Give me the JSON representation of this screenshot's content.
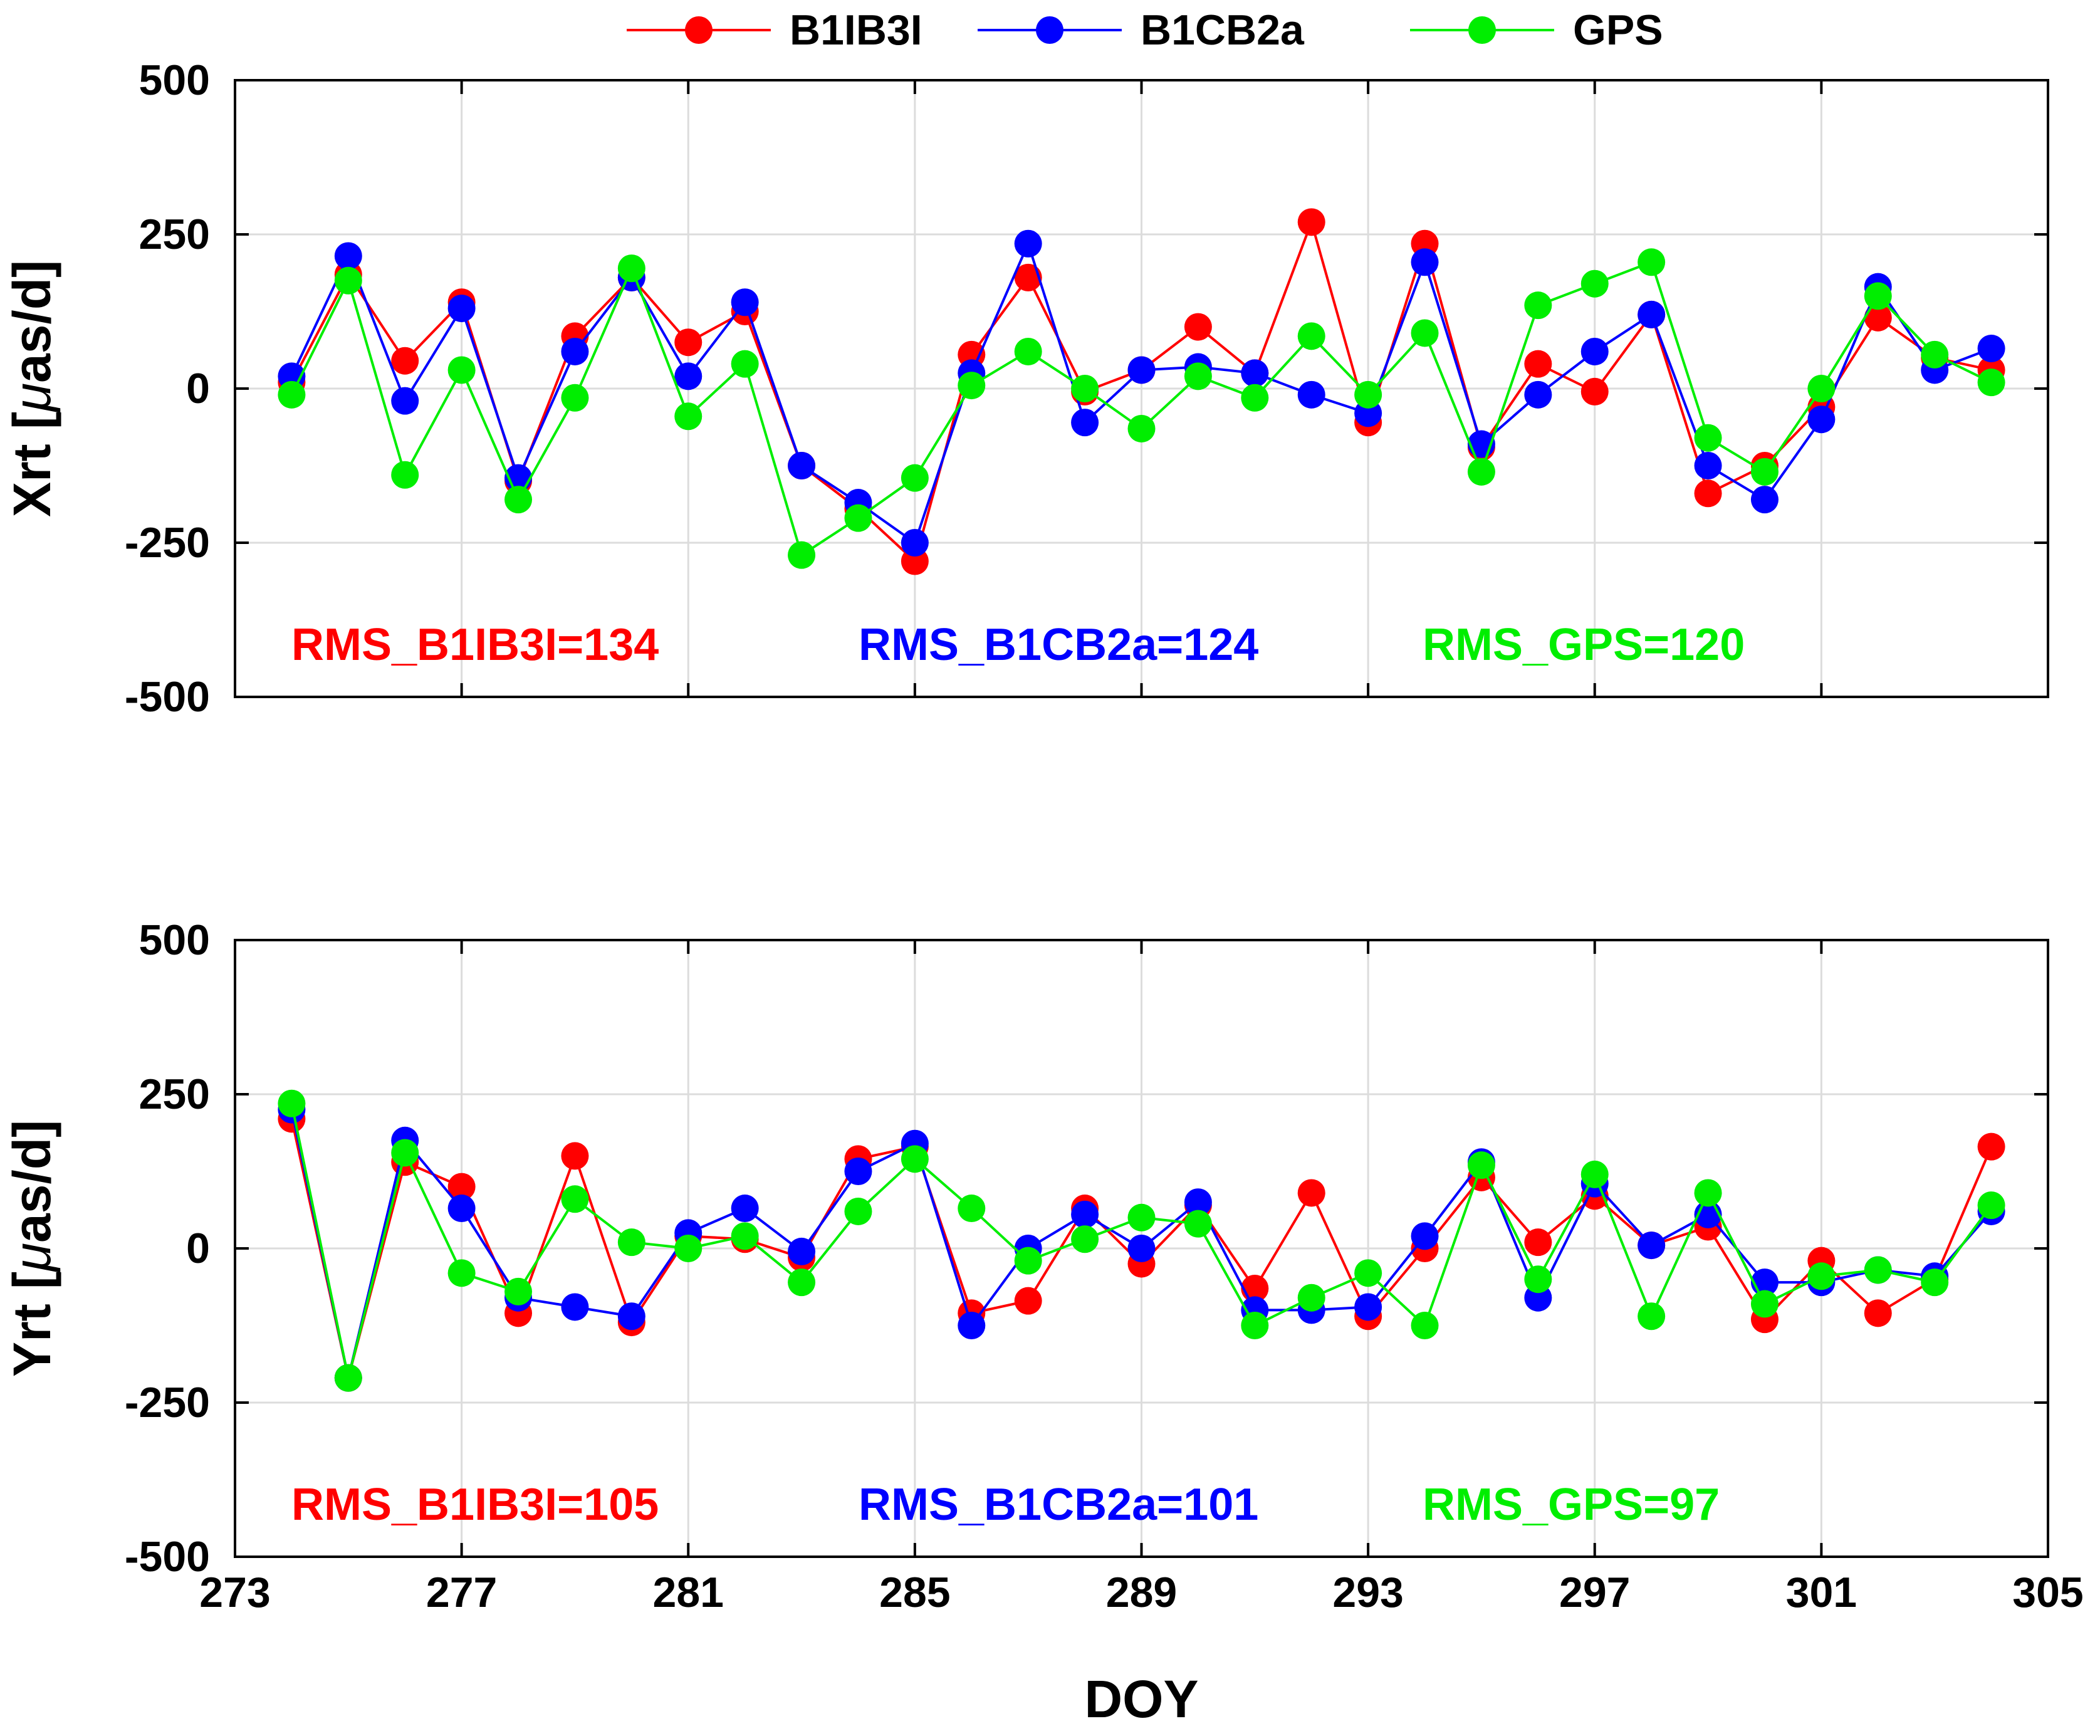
{
  "legend": {
    "entries": [
      {
        "label": "B1IB3I",
        "color": "#ff0000"
      },
      {
        "label": "B1CB2a",
        "color": "#0000ff"
      },
      {
        "label": "GPS",
        "color": "#00ee00"
      }
    ]
  },
  "chart_data": [
    {
      "type": "line",
      "title": "",
      "xlabel": "",
      "ylabel": "Xrt [μas/d]",
      "ylabel_prefix": "Xrt [",
      "ylabel_greek": "μ",
      "ylabel_suffix": "as/d]",
      "xlim": [
        273,
        305
      ],
      "ylim": [
        -500,
        500
      ],
      "xticks": [
        273,
        277,
        281,
        285,
        289,
        293,
        297,
        301,
        305
      ],
      "yticks": [
        -500,
        -250,
        0,
        250,
        500
      ],
      "grid": true,
      "x": [
        274,
        275,
        276,
        277,
        278,
        279,
        280,
        281,
        282,
        283,
        284,
        285,
        286,
        287,
        288,
        289,
        290,
        291,
        292,
        293,
        294,
        295,
        296,
        297,
        298,
        299,
        300,
        301,
        302,
        303,
        304
      ],
      "series": [
        {
          "name": "B1IB3I",
          "color": "#ff0000",
          "values": [
            10,
            185,
            45,
            140,
            -150,
            85,
            180,
            75,
            125,
            -125,
            -195,
            -280,
            55,
            180,
            -5,
            30,
            100,
            25,
            270,
            -55,
            235,
            -95,
            40,
            -5,
            120,
            -170,
            -125,
            -30,
            115,
            50,
            30
          ]
        },
        {
          "name": "B1CB2a",
          "color": "#0000ff",
          "values": [
            20,
            215,
            -20,
            130,
            -145,
            60,
            180,
            20,
            140,
            -125,
            -185,
            -250,
            25,
            235,
            -55,
            30,
            35,
            25,
            -10,
            -40,
            205,
            -90,
            -10,
            60,
            120,
            -125,
            -180,
            -50,
            165,
            30,
            65
          ]
        },
        {
          "name": "GPS",
          "color": "#00ee00",
          "values": [
            -10,
            175,
            -140,
            30,
            -180,
            -15,
            195,
            -45,
            40,
            -270,
            -210,
            -145,
            5,
            60,
            0,
            -65,
            20,
            -15,
            85,
            -10,
            90,
            -135,
            135,
            170,
            205,
            -80,
            -135,
            0,
            150,
            55,
            10
          ]
        }
      ],
      "annotations": [
        {
          "text": "RMS_B1IB3I=134",
          "color": "#ff0000"
        },
        {
          "text": "RMS_B1CB2a=124",
          "color": "#0000ff"
        },
        {
          "text": "RMS_GPS=120",
          "color": "#00ee00"
        }
      ]
    },
    {
      "type": "line",
      "title": "",
      "xlabel": "DOY",
      "ylabel": "Yrt [μas/d]",
      "ylabel_prefix": "Yrt [",
      "ylabel_greek": "μ",
      "ylabel_suffix": "as/d]",
      "xlim": [
        273,
        305
      ],
      "ylim": [
        -500,
        500
      ],
      "xticks": [
        273,
        277,
        281,
        285,
        289,
        293,
        297,
        301,
        305
      ],
      "yticks": [
        -500,
        -250,
        0,
        250,
        500
      ],
      "grid": true,
      "x": [
        274,
        275,
        276,
        277,
        278,
        279,
        280,
        281,
        282,
        283,
        284,
        285,
        286,
        287,
        288,
        289,
        290,
        291,
        292,
        293,
        294,
        295,
        296,
        297,
        298,
        299,
        300,
        301,
        302,
        303,
        304
      ],
      "series": [
        {
          "name": "B1IB3I",
          "color": "#ff0000",
          "values": [
            210,
            -210,
            140,
            100,
            -105,
            150,
            -120,
            20,
            15,
            -15,
            145,
            165,
            -105,
            -85,
            65,
            -25,
            70,
            -65,
            90,
            -110,
            0,
            115,
            10,
            85,
            5,
            35,
            -115,
            -20,
            -105,
            -50,
            165
          ]
        },
        {
          "name": "B1CB2a",
          "color": "#0000ff",
          "values": [
            225,
            -210,
            175,
            65,
            -80,
            -95,
            -110,
            25,
            65,
            -5,
            125,
            170,
            -125,
            0,
            55,
            0,
            75,
            -100,
            -100,
            -95,
            20,
            140,
            -80,
            105,
            5,
            55,
            -55,
            -55,
            -35,
            -45,
            60
          ]
        },
        {
          "name": "GPS",
          "color": "#00ee00",
          "values": [
            235,
            -210,
            155,
            -40,
            -70,
            80,
            10,
            0,
            20,
            -55,
            60,
            145,
            65,
            -20,
            15,
            50,
            40,
            -125,
            -80,
            -40,
            -125,
            135,
            -50,
            120,
            -110,
            90,
            -90,
            -45,
            -35,
            -55,
            70
          ]
        }
      ],
      "annotations": [
        {
          "text": "RMS_B1IB3I=105",
          "color": "#ff0000"
        },
        {
          "text": "RMS_B1CB2a=101",
          "color": "#0000ff"
        },
        {
          "text": "RMS_GPS=97",
          "color": "#00ee00"
        }
      ]
    }
  ]
}
